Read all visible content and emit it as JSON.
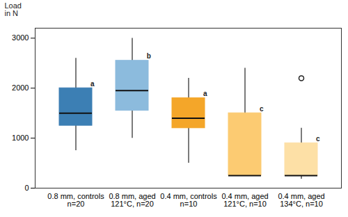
{
  "chart_data": {
    "type": "box",
    "y_label": "Load\nin N",
    "categories": [
      "0.8 mm, controls\nn=20",
      "0.8 mm, aged\n121°C, n=20",
      "0.4 mm, controls\nn=10",
      "0.4 mm, aged\n121°C, n=10",
      "0.4 mm, aged\n134°C, n=10"
    ],
    "min": [
      750,
      1000,
      500,
      250,
      180
    ],
    "q1": [
      1250,
      1550,
      1200,
      250,
      250
    ],
    "median": [
      1500,
      1950,
      1400,
      250,
      250
    ],
    "q3": [
      2000,
      2550,
      1800,
      1500,
      900
    ],
    "max": [
      2600,
      3000,
      2200,
      2400,
      1200
    ],
    "outliers": [
      [],
      [],
      [],
      [],
      [
        2200
      ]
    ],
    "annotations": [
      "a",
      "b",
      "a",
      "c",
      "c"
    ],
    "colors": [
      "#3c7fb4",
      "#8cbbdd",
      "#f4a629",
      "#fccb72",
      "#fde0a6"
    ],
    "ylim": [
      0,
      3200
    ],
    "yticks": [
      0,
      1000,
      2000,
      3000
    ],
    "grid": false
  }
}
